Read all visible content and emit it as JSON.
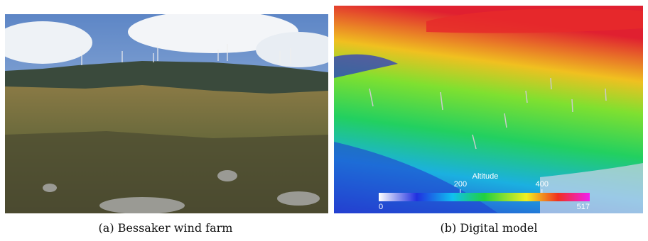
{
  "figure": {
    "panels": [
      {
        "caption": "(a) Bessaker wind farm"
      },
      {
        "caption": "(b) Digital model",
        "colorbar": {
          "title": "Altitude",
          "min": 0,
          "max": 517,
          "ticks": [
            200,
            400
          ]
        }
      }
    ]
  }
}
